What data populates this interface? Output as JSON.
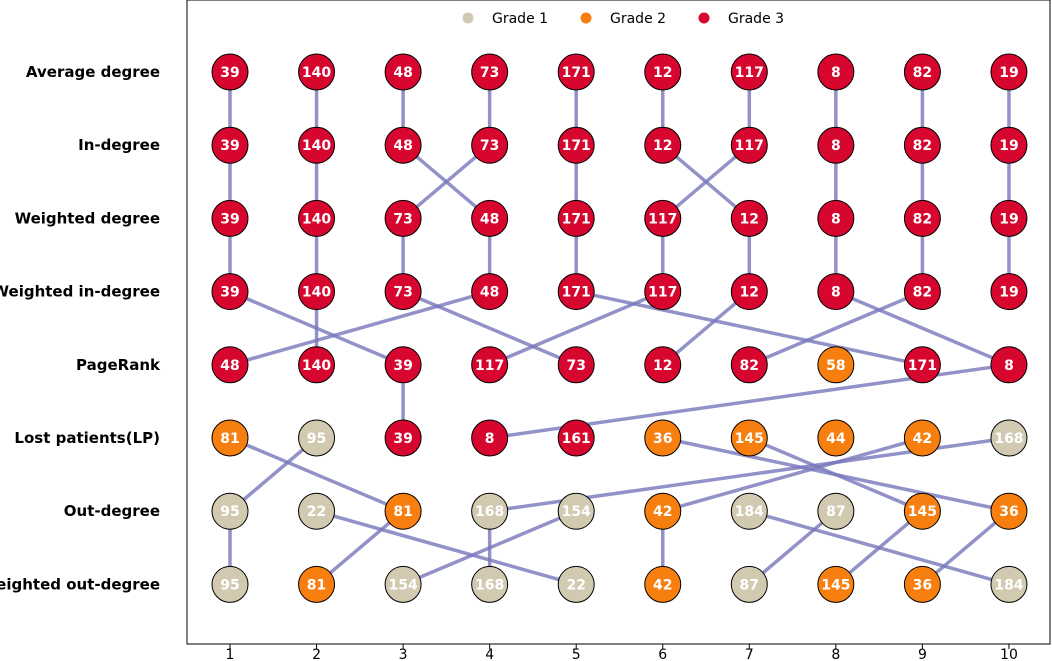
{
  "chart_data": {
    "type": "scatter",
    "subtype": "bump-ranking",
    "x_ticks": [
      "1",
      "2",
      "3",
      "4",
      "5",
      "6",
      "7",
      "8",
      "9",
      "10"
    ],
    "colors": {
      "1": "#d1c9b0",
      "2": "#f77f0f",
      "3": "#d6062f",
      "link": "#7777bb"
    },
    "legend": [
      {
        "label": "Grade 1",
        "grade": 1
      },
      {
        "label": "Grade 2",
        "grade": 2
      },
      {
        "label": "Grade 3",
        "grade": 3
      }
    ],
    "legend_position": "top-center",
    "rows": [
      {
        "label": "Average degree",
        "nodes": [
          {
            "id": 39,
            "grade": 3
          },
          {
            "id": 140,
            "grade": 3
          },
          {
            "id": 48,
            "grade": 3
          },
          {
            "id": 73,
            "grade": 3
          },
          {
            "id": 171,
            "grade": 3
          },
          {
            "id": 12,
            "grade": 3
          },
          {
            "id": 117,
            "grade": 3
          },
          {
            "id": 8,
            "grade": 3
          },
          {
            "id": 82,
            "grade": 3
          },
          {
            "id": 19,
            "grade": 3
          }
        ]
      },
      {
        "label": "In-degree",
        "nodes": [
          {
            "id": 39,
            "grade": 3
          },
          {
            "id": 140,
            "grade": 3
          },
          {
            "id": 48,
            "grade": 3
          },
          {
            "id": 73,
            "grade": 3
          },
          {
            "id": 171,
            "grade": 3
          },
          {
            "id": 12,
            "grade": 3
          },
          {
            "id": 117,
            "grade": 3
          },
          {
            "id": 8,
            "grade": 3
          },
          {
            "id": 82,
            "grade": 3
          },
          {
            "id": 19,
            "grade": 3
          }
        ]
      },
      {
        "label": "Weighted degree",
        "nodes": [
          {
            "id": 39,
            "grade": 3
          },
          {
            "id": 140,
            "grade": 3
          },
          {
            "id": 73,
            "grade": 3
          },
          {
            "id": 48,
            "grade": 3
          },
          {
            "id": 171,
            "grade": 3
          },
          {
            "id": 117,
            "grade": 3
          },
          {
            "id": 12,
            "grade": 3
          },
          {
            "id": 8,
            "grade": 3
          },
          {
            "id": 82,
            "grade": 3
          },
          {
            "id": 19,
            "grade": 3
          }
        ]
      },
      {
        "label": "Weighted in-degree",
        "nodes": [
          {
            "id": 39,
            "grade": 3
          },
          {
            "id": 140,
            "grade": 3
          },
          {
            "id": 73,
            "grade": 3
          },
          {
            "id": 48,
            "grade": 3
          },
          {
            "id": 171,
            "grade": 3
          },
          {
            "id": 117,
            "grade": 3
          },
          {
            "id": 12,
            "grade": 3
          },
          {
            "id": 8,
            "grade": 3
          },
          {
            "id": 82,
            "grade": 3
          },
          {
            "id": 19,
            "grade": 3
          }
        ]
      },
      {
        "label": "PageRank",
        "nodes": [
          {
            "id": 48,
            "grade": 3
          },
          {
            "id": 140,
            "grade": 3
          },
          {
            "id": 39,
            "grade": 3
          },
          {
            "id": 117,
            "grade": 3
          },
          {
            "id": 73,
            "grade": 3
          },
          {
            "id": 12,
            "grade": 3
          },
          {
            "id": 82,
            "grade": 3
          },
          {
            "id": 58,
            "grade": 2
          },
          {
            "id": 171,
            "grade": 3
          },
          {
            "id": 8,
            "grade": 3
          }
        ]
      },
      {
        "label": "Lost patients(LP)",
        "nodes": [
          {
            "id": 81,
            "grade": 2
          },
          {
            "id": 95,
            "grade": 1
          },
          {
            "id": 39,
            "grade": 3
          },
          {
            "id": 8,
            "grade": 3
          },
          {
            "id": 161,
            "grade": 3
          },
          {
            "id": 36,
            "grade": 2
          },
          {
            "id": 145,
            "grade": 2
          },
          {
            "id": 44,
            "grade": 2
          },
          {
            "id": 42,
            "grade": 2
          },
          {
            "id": 168,
            "grade": 1
          }
        ]
      },
      {
        "label": "Out-degree",
        "nodes": [
          {
            "id": 95,
            "grade": 1
          },
          {
            "id": 22,
            "grade": 1
          },
          {
            "id": 81,
            "grade": 2
          },
          {
            "id": 168,
            "grade": 1
          },
          {
            "id": 154,
            "grade": 1
          },
          {
            "id": 42,
            "grade": 2
          },
          {
            "id": 184,
            "grade": 1
          },
          {
            "id": 87,
            "grade": 1
          },
          {
            "id": 145,
            "grade": 2
          },
          {
            "id": 36,
            "grade": 2
          }
        ]
      },
      {
        "label": "Weighted out-degree",
        "nodes": [
          {
            "id": 95,
            "grade": 1
          },
          {
            "id": 81,
            "grade": 2
          },
          {
            "id": 154,
            "grade": 1
          },
          {
            "id": 168,
            "grade": 1
          },
          {
            "id": 22,
            "grade": 1
          },
          {
            "id": 42,
            "grade": 2
          },
          {
            "id": 87,
            "grade": 1
          },
          {
            "id": 145,
            "grade": 2
          },
          {
            "id": 36,
            "grade": 2
          },
          {
            "id": 184,
            "grade": 1
          }
        ]
      }
    ]
  }
}
